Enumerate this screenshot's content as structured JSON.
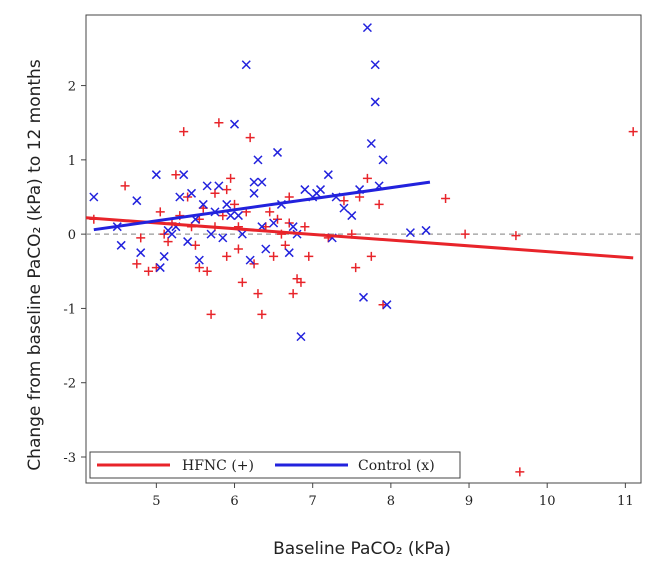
{
  "chart_data": {
    "type": "scatter",
    "title": "",
    "xlabel": "Baseline PaCO₂ (kPa)",
    "ylabel": "Change from baseline PaCO₂ (kPa) to 12 months",
    "xlim": [
      4.1,
      11.2
    ],
    "ylim": [
      -3.35,
      2.95
    ],
    "xticks": [
      5,
      6,
      7,
      8,
      9,
      10,
      11
    ],
    "yticks": [
      -3,
      -2,
      -1,
      0,
      1,
      2
    ],
    "reference_line_y": 0,
    "grid": false,
    "legend_placement": "bottom-left",
    "legend": [
      {
        "label": "HFNC (+)",
        "color": "#e8242a"
      },
      {
        "label": "Control (x)",
        "color": "#2222dd"
      }
    ],
    "series": [
      {
        "name": "HFNC (+)",
        "color": "#e8242a",
        "marker": "plus",
        "points": [
          [
            4.2,
            0.2
          ],
          [
            4.6,
            0.65
          ],
          [
            4.75,
            -0.4
          ],
          [
            4.9,
            -0.5
          ],
          [
            5.0,
            -0.45
          ],
          [
            5.1,
            0.0
          ],
          [
            5.15,
            -0.1
          ],
          [
            5.2,
            0.15
          ],
          [
            5.25,
            0.8
          ],
          [
            5.3,
            0.25
          ],
          [
            5.35,
            1.38
          ],
          [
            5.4,
            0.5
          ],
          [
            5.45,
            0.1
          ],
          [
            5.5,
            -0.15
          ],
          [
            5.55,
            -0.45
          ],
          [
            5.6,
            0.35
          ],
          [
            5.65,
            -0.5
          ],
          [
            5.7,
            -1.08
          ],
          [
            5.75,
            0.1
          ],
          [
            5.75,
            0.55
          ],
          [
            5.8,
            1.5
          ],
          [
            5.85,
            0.25
          ],
          [
            5.9,
            -0.3
          ],
          [
            5.95,
            0.75
          ],
          [
            6.0,
            0.4
          ],
          [
            6.05,
            0.1
          ],
          [
            6.1,
            -0.65
          ],
          [
            6.15,
            0.3
          ],
          [
            6.2,
            1.3
          ],
          [
            6.25,
            -0.4
          ],
          [
            6.3,
            -0.8
          ],
          [
            6.35,
            -1.08
          ],
          [
            6.4,
            0.1
          ],
          [
            6.45,
            0.3
          ],
          [
            6.5,
            -0.3
          ],
          [
            6.55,
            0.2
          ],
          [
            6.6,
            0.0
          ],
          [
            6.65,
            -0.15
          ],
          [
            6.7,
            0.15
          ],
          [
            6.75,
            -0.8
          ],
          [
            6.8,
            -0.6
          ],
          [
            6.85,
            -0.65
          ],
          [
            6.9,
            0.1
          ],
          [
            6.95,
            -0.3
          ],
          [
            7.2,
            -0.05
          ],
          [
            7.4,
            0.45
          ],
          [
            7.5,
            0.0
          ],
          [
            7.55,
            -0.45
          ],
          [
            7.6,
            0.5
          ],
          [
            7.7,
            0.75
          ],
          [
            7.75,
            -0.3
          ],
          [
            7.85,
            0.4
          ],
          [
            7.9,
            -0.95
          ],
          [
            8.7,
            0.48
          ],
          [
            8.95,
            0.0
          ],
          [
            9.6,
            -0.02
          ],
          [
            9.65,
            -3.2
          ],
          [
            11.1,
            1.38
          ],
          [
            5.05,
            0.3
          ],
          [
            5.55,
            0.2
          ],
          [
            6.05,
            -0.2
          ],
          [
            4.8,
            -0.05
          ],
          [
            5.9,
            0.6
          ],
          [
            6.7,
            0.5
          ]
        ]
      },
      {
        "name": "Control (x)",
        "color": "#2222dd",
        "marker": "x",
        "points": [
          [
            4.2,
            0.5
          ],
          [
            4.5,
            0.1
          ],
          [
            4.55,
            -0.15
          ],
          [
            4.75,
            0.45
          ],
          [
            4.8,
            -0.25
          ],
          [
            5.0,
            0.8
          ],
          [
            5.05,
            -0.45
          ],
          [
            5.1,
            -0.3
          ],
          [
            5.2,
            0.0
          ],
          [
            5.25,
            0.1
          ],
          [
            5.3,
            0.5
          ],
          [
            5.35,
            0.8
          ],
          [
            5.4,
            -0.1
          ],
          [
            5.45,
            0.55
          ],
          [
            5.5,
            0.2
          ],
          [
            5.55,
            -0.35
          ],
          [
            5.6,
            0.4
          ],
          [
            5.65,
            0.65
          ],
          [
            5.7,
            0.0
          ],
          [
            5.75,
            0.3
          ],
          [
            5.8,
            0.65
          ],
          [
            5.85,
            -0.05
          ],
          [
            5.9,
            0.4
          ],
          [
            5.95,
            0.25
          ],
          [
            6.0,
            1.48
          ],
          [
            6.05,
            0.25
          ],
          [
            6.1,
            0.0
          ],
          [
            6.15,
            2.28
          ],
          [
            6.2,
            -0.35
          ],
          [
            6.25,
            0.7
          ],
          [
            6.3,
            1.0
          ],
          [
            6.35,
            0.1
          ],
          [
            6.4,
            -0.2
          ],
          [
            6.5,
            0.15
          ],
          [
            6.55,
            1.1
          ],
          [
            6.6,
            0.4
          ],
          [
            6.7,
            -0.25
          ],
          [
            6.75,
            0.1
          ],
          [
            6.8,
            0.0
          ],
          [
            6.85,
            -1.38
          ],
          [
            6.9,
            0.6
          ],
          [
            7.0,
            0.5
          ],
          [
            7.05,
            0.55
          ],
          [
            7.1,
            0.6
          ],
          [
            7.2,
            0.8
          ],
          [
            7.25,
            -0.05
          ],
          [
            7.3,
            0.5
          ],
          [
            7.4,
            0.35
          ],
          [
            7.5,
            0.25
          ],
          [
            7.6,
            0.6
          ],
          [
            7.65,
            -0.85
          ],
          [
            7.7,
            2.78
          ],
          [
            7.75,
            1.22
          ],
          [
            7.8,
            2.28
          ],
          [
            7.8,
            1.78
          ],
          [
            7.85,
            0.65
          ],
          [
            7.9,
            1.0
          ],
          [
            7.95,
            -0.95
          ],
          [
            8.25,
            0.02
          ],
          [
            8.45,
            0.05
          ],
          [
            6.25,
            0.55
          ],
          [
            5.15,
            0.05
          ],
          [
            6.35,
            0.7
          ]
        ]
      }
    ],
    "regression_lines": [
      {
        "name": "HFNC (+)",
        "color": "#e8242a",
        "x": [
          4.1,
          11.1
        ],
        "y": [
          0.22,
          -0.32
        ]
      },
      {
        "name": "Control (x)",
        "color": "#2222dd",
        "x": [
          4.2,
          8.5
        ],
        "y": [
          0.06,
          0.7
        ]
      }
    ]
  }
}
